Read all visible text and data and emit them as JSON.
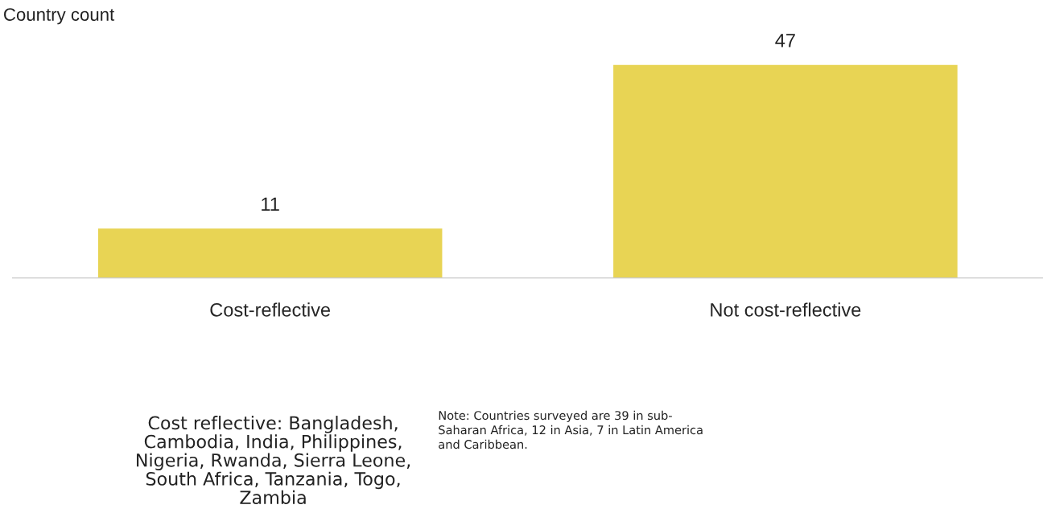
{
  "chart_data": {
    "type": "bar",
    "ylabel": "Country count",
    "categories": [
      "Cost-reflective",
      "Not cost-reflective"
    ],
    "values": [
      11,
      47
    ],
    "color": "#e8d454",
    "data_labels": true,
    "grid": false,
    "legend": false,
    "tick_labels": "x",
    "annotations": [
      "Cost reflective: Bangladesh,\nCambodia, India, Philippines,\nNigeria, Rwanda, Sierra Leone,\nSouth Africa, Tanzania, Togo,\nZambia",
      "Note: Countries surveyed are 39 in sub-\nSaharan Africa, 12 in Asia, 7 in Latin America\nand Caribbean."
    ]
  }
}
